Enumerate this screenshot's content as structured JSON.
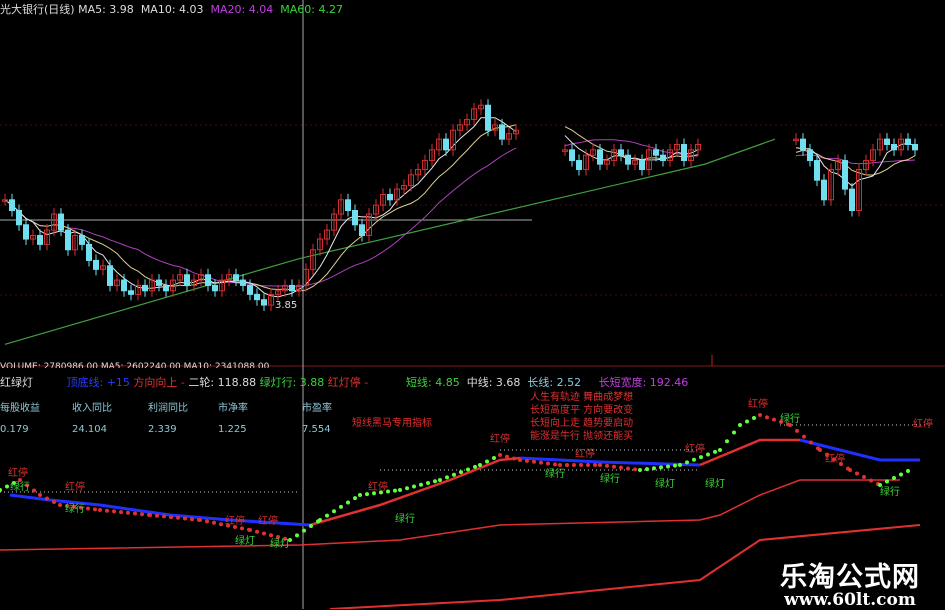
{
  "header": {
    "title": "光大银行(日线)",
    "ma5": "MA5: 3.98",
    "ma10": "MA10: 4.03",
    "ma20": "MA20: 4.04",
    "ma60": "MA60: 4.27"
  },
  "volume_line": "VOLUME: 2780986.00  MA5: 2602240.00  MA10: 2341088.00",
  "indicator": {
    "name": "红绿灯",
    "blue_label": "顶底线: +15",
    "dir": "方向向上 -",
    "erlun": "二轮: 118.88",
    "green_go": "绿灯行: 3.88",
    "red_stop": "红灯停 -",
    "short": "短线: 4.85",
    "mid": "中线: 3.68",
    "long": "长线: 2.52",
    "width": "长短宽度: 192.46",
    "tagline": "短线黑马专用指标",
    "poem": [
      "人生有轨迹 舞曲成梦想",
      "长短高度平 方向要改变",
      "长短向上走 趋势要启动",
      "能涨是牛行 抛领还能买"
    ],
    "mark_red": "红停",
    "mark_green_go": "绿行",
    "mark_green_light": "绿灯"
  },
  "fundamentals": {
    "headers": [
      "每股收益",
      "收入同比",
      "利润同比",
      "市净率",
      "市盈率"
    ],
    "values": [
      "0.179",
      "24.104",
      "2.339",
      "1.225",
      "7.554"
    ]
  },
  "low_label": "3.85",
  "logo": {
    "name": "乐淘公式网",
    "url": "www.60lt.com"
  },
  "colors": {
    "up": "#d03030",
    "down": "#70e0f0",
    "ma5": "#e8e8e8",
    "ma10": "#e0d090",
    "ma20": "#b040c0",
    "ma60": "#40a040",
    "dot_red": "#e03030",
    "dot_green": "#60ff40",
    "line_blue": "#2030ff"
  },
  "chart_data": {
    "type": "candlestick",
    "ylim": [
      3.57,
      5.56
    ],
    "closes": [
      4.44,
      4.38,
      4.3,
      4.22,
      4.24,
      4.19,
      4.27,
      4.36,
      4.27,
      4.16,
      4.24,
      4.19,
      4.1,
      4.05,
      4.07,
      3.96,
      3.99,
      3.93,
      3.91,
      3.96,
      3.93,
      3.99,
      3.96,
      3.93,
      3.99,
      4.02,
      3.96,
      3.99,
      4.02,
      3.96,
      3.93,
      3.99,
      4.02,
      3.99,
      3.96,
      3.91,
      3.88,
      3.85,
      3.91,
      3.93,
      3.96,
      3.93,
      3.96,
      4.05,
      4.16,
      4.22,
      4.27,
      4.36,
      4.44,
      4.38,
      4.3,
      4.24,
      4.36,
      4.41,
      4.47,
      4.44,
      4.5,
      4.52,
      4.58,
      4.61,
      4.66,
      4.72,
      4.78,
      4.72,
      4.83,
      4.86,
      4.89,
      4.95,
      4.97,
      4.83,
      4.86,
      4.78,
      4.81,
      4.83,
      null,
      null,
      null,
      null,
      null,
      null,
      4.72,
      4.66,
      4.61,
      4.69,
      4.72,
      4.64,
      4.66,
      4.72,
      4.69,
      4.64,
      4.66,
      4.61,
      4.72,
      4.69,
      4.66,
      4.72,
      4.75,
      4.66,
      4.72,
      4.75,
      null,
      null,
      null,
      null,
      null,
      null,
      null,
      null,
      null,
      null,
      null,
      null,
      null,
      4.78,
      4.72,
      4.66,
      4.55,
      4.44,
      4.61,
      4.66,
      4.5,
      4.38,
      4.61,
      4.66,
      4.72,
      4.78,
      4.75,
      4.72,
      4.78,
      4.75,
      4.72
    ],
    "ma60_points": [
      [
        0,
        3.63
      ],
      [
        42,
        4.11
      ],
      [
        100,
        4.64
      ],
      [
        110,
        4.78
      ]
    ],
    "indicator_series": {
      "dots": [
        [
          0,
          120
        ],
        [
          20,
          130
        ],
        [
          40,
          115
        ],
        [
          60,
          105
        ],
        [
          100,
          100
        ],
        [
          150,
          95
        ],
        [
          200,
          90
        ],
        [
          250,
          80
        ],
        [
          290,
          70
        ],
        [
          320,
          90
        ],
        [
          360,
          115
        ],
        [
          400,
          120
        ],
        [
          440,
          130
        ],
        [
          480,
          145
        ],
        [
          500,
          155
        ],
        [
          520,
          150
        ],
        [
          560,
          145
        ],
        [
          600,
          145
        ],
        [
          640,
          140
        ],
        [
          680,
          145
        ],
        [
          720,
          160
        ],
        [
          740,
          185
        ],
        [
          760,
          195
        ],
        [
          790,
          185
        ],
        [
          820,
          160
        ],
        [
          850,
          140
        ],
        [
          880,
          125
        ],
        [
          910,
          140
        ]
      ],
      "blue": [
        [
          [
            10,
            115
          ],
          [
            50,
            110
          ],
          [
            100,
            105
          ],
          [
            170,
            95
          ],
          [
            230,
            90
          ],
          [
            310,
            85
          ]
        ],
        [
          [
            520,
            152
          ],
          [
            600,
            148
          ],
          [
            700,
            145
          ]
        ],
        [
          [
            800,
            170
          ],
          [
            880,
            150
          ],
          [
            920,
            150
          ]
        ]
      ],
      "red": [
        [
          [
            310,
            85
          ],
          [
            380,
            105
          ],
          [
            450,
            130
          ],
          [
            500,
            150
          ],
          [
            520,
            152
          ]
        ],
        [
          [
            700,
            145
          ],
          [
            760,
            170
          ],
          [
            800,
            170
          ]
        ]
      ],
      "lower_red": [
        [
          0,
          60
        ],
        [
          300,
          65
        ],
        [
          400,
          70
        ],
        [
          500,
          85
        ],
        [
          700,
          90
        ],
        [
          720,
          95
        ],
        [
          760,
          115
        ],
        [
          800,
          130
        ],
        [
          900,
          130
        ]
      ],
      "bottom_red": [
        [
          330,
          1
        ],
        [
          500,
          10
        ],
        [
          700,
          30
        ],
        [
          760,
          70
        ],
        [
          920,
          85
        ]
      ]
    }
  }
}
